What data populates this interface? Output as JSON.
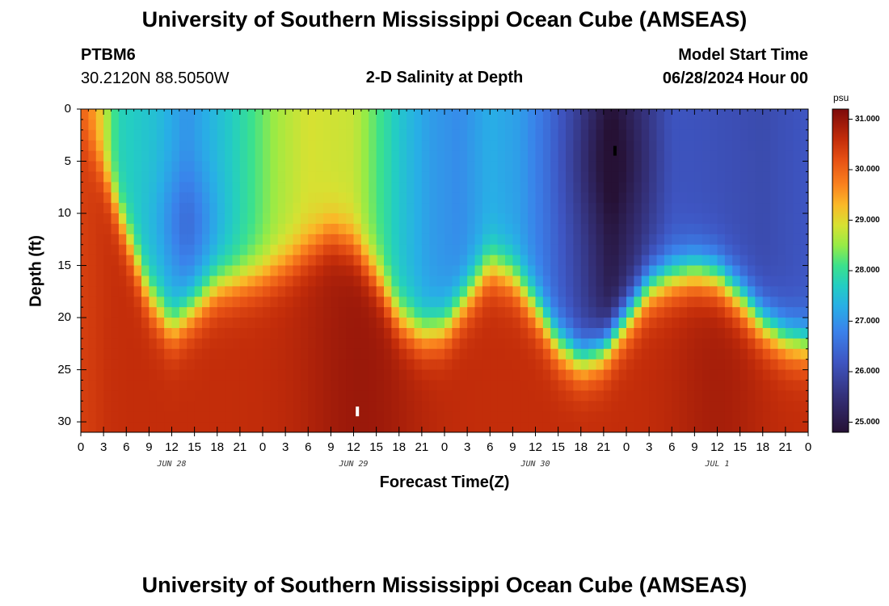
{
  "page": {
    "title": "University of Southern Mississippi Ocean Cube (AMSEAS)",
    "station_id": "PTBM6",
    "coordinates": "30.2120N  88.5050W",
    "subtitle": "2-D Salinity at Depth",
    "model_start_label": "Model Start Time",
    "model_start_value": "06/28/2024 Hour 00",
    "footer_title": "University of Southern Mississippi Ocean Cube (AMSEAS)"
  },
  "chart_data": {
    "type": "heatmap",
    "title": "2-D Salinity at Depth",
    "xlabel": "Forecast Time(Z)",
    "ylabel": "Depth (ft)",
    "x_range_hours": [
      0,
      96
    ],
    "ylim": [
      0,
      31
    ],
    "x_tick_labels": [
      "0",
      "3",
      "6",
      "9",
      "12",
      "15",
      "18",
      "21",
      "0",
      "3",
      "6",
      "9",
      "12",
      "15",
      "18",
      "21",
      "0",
      "3",
      "6",
      "9",
      "12",
      "15",
      "18",
      "21",
      "0",
      "3",
      "6",
      "9",
      "12",
      "15",
      "18",
      "21",
      "0"
    ],
    "date_labels": [
      {
        "label": "JUN 28",
        "hour": 12
      },
      {
        "label": "JUN 29",
        "hour": 36
      },
      {
        "label": "JUN 30",
        "hour": 60
      },
      {
        "label": "JUL 1",
        "hour": 84
      }
    ],
    "y_ticks": [
      0,
      5,
      10,
      15,
      20,
      25,
      30
    ],
    "y_tick_labels": [
      "0",
      "5",
      "10",
      "15",
      "20",
      "25",
      "30"
    ],
    "colorbar": {
      "unit": "psu",
      "min": 24.8,
      "max": 31.2,
      "ticks": [
        31.0,
        30.0,
        29.0,
        28.0,
        27.0,
        26.0,
        25.0
      ],
      "tick_labels": [
        "31.000",
        "30.000",
        "29.000",
        "28.000",
        "27.000",
        "26.000",
        "25.000"
      ]
    },
    "markers": [
      {
        "label": "maximum",
        "hour": 36.5,
        "depth": 29.0
      },
      {
        "label": "minimum",
        "hour": 70.5,
        "depth": 4.0
      }
    ],
    "halocline": {
      "description": "approximate depth (ft) of fresh/salty transition by forecast hour",
      "hours": [
        0,
        3,
        6,
        9,
        12,
        15,
        18,
        21,
        24,
        27,
        30,
        33,
        36,
        39,
        42,
        45,
        48,
        51,
        54,
        57,
        60,
        63,
        66,
        69,
        72,
        75,
        78,
        81,
        84,
        87,
        90,
        93,
        96
      ],
      "depth_ft": [
        2,
        6,
        12,
        18,
        21,
        19,
        17,
        16.5,
        16,
        15,
        13.5,
        12,
        13,
        16,
        20,
        21.5,
        21,
        18,
        15,
        16,
        19,
        22.5,
        24,
        23,
        20,
        17,
        16,
        15.5,
        16,
        18,
        20.5,
        22,
        22.5
      ]
    }
  }
}
